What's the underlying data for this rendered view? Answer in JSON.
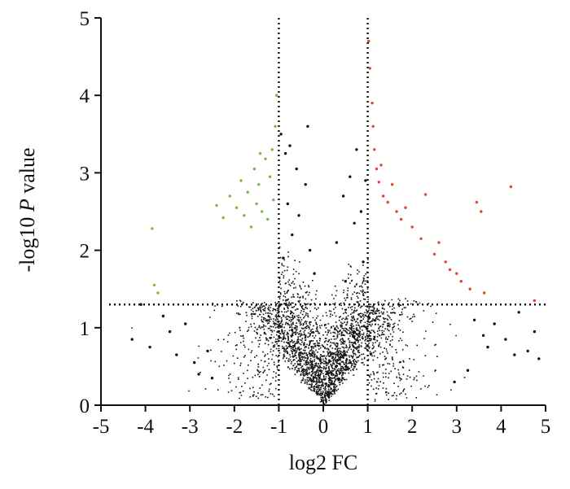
{
  "chart_data": {
    "type": "scatter",
    "title": "",
    "xlabel": "log2 FC",
    "ylabel_parts": [
      "-log10 ",
      "P",
      " value"
    ],
    "xlim": [
      -5,
      5
    ],
    "ylim": [
      0,
      5
    ],
    "xticks": [
      "-5",
      "-4",
      "-3",
      "-2",
      "-1",
      "0",
      "1",
      "2",
      "3",
      "4",
      "5"
    ],
    "yticks": [
      "0",
      "1",
      "2",
      "3",
      "4",
      "5"
    ],
    "thresholds": {
      "x": [
        -1,
        1
      ],
      "y": 1.3
    },
    "grid": false,
    "legend": "none",
    "series": [
      {
        "color": "#7ab648",
        "class": "down-regulated",
        "points": [
          [
            -3.85,
            2.28
          ],
          [
            -3.8,
            1.55
          ],
          [
            -3.72,
            1.45
          ],
          [
            -2.4,
            2.58
          ],
          [
            -2.25,
            2.42
          ],
          [
            -2.1,
            2.7
          ],
          [
            -1.95,
            2.55
          ],
          [
            -1.85,
            2.9
          ],
          [
            -1.78,
            2.45
          ],
          [
            -1.7,
            2.75
          ],
          [
            -1.62,
            2.3
          ],
          [
            -1.55,
            3.05
          ],
          [
            -1.5,
            2.6
          ],
          [
            -1.45,
            2.85
          ],
          [
            -1.42,
            3.25
          ],
          [
            -1.38,
            2.5
          ],
          [
            -1.3,
            3.18
          ],
          [
            -1.25,
            2.4
          ],
          [
            -1.2,
            2.95
          ],
          [
            -1.15,
            3.3
          ],
          [
            -1.12,
            2.65
          ],
          [
            -1.08,
            3.6
          ],
          [
            -1.05,
            4.0
          ]
        ]
      },
      {
        "color": "#e8412c",
        "class": "up-regulated",
        "points": [
          [
            1.02,
            4.7
          ],
          [
            1.05,
            4.35
          ],
          [
            1.1,
            3.9
          ],
          [
            1.12,
            3.6
          ],
          [
            1.15,
            3.3
          ],
          [
            1.2,
            3.05
          ],
          [
            1.25,
            2.88
          ],
          [
            1.3,
            3.1
          ],
          [
            1.35,
            2.7
          ],
          [
            1.45,
            2.62
          ],
          [
            1.55,
            2.85
          ],
          [
            1.65,
            2.5
          ],
          [
            1.75,
            2.4
          ],
          [
            1.85,
            2.55
          ],
          [
            2.0,
            2.3
          ],
          [
            2.2,
            2.15
          ],
          [
            2.3,
            2.72
          ],
          [
            2.5,
            1.95
          ],
          [
            2.6,
            2.1
          ],
          [
            2.75,
            1.85
          ],
          [
            2.85,
            1.75
          ],
          [
            3.0,
            1.7
          ],
          [
            3.1,
            1.6
          ],
          [
            3.3,
            1.5
          ],
          [
            3.45,
            2.62
          ],
          [
            3.55,
            2.5
          ],
          [
            3.62,
            1.45
          ],
          [
            4.22,
            2.82
          ],
          [
            4.75,
            1.35
          ]
        ]
      },
      {
        "color": "#111111",
        "class": "not-significant",
        "points": [
          [
            -0.95,
            3.5
          ],
          [
            -0.85,
            3.25
          ],
          [
            -0.75,
            3.35
          ],
          [
            -0.6,
            3.05
          ],
          [
            -0.4,
            2.85
          ],
          [
            -0.8,
            2.6
          ],
          [
            -0.55,
            2.45
          ],
          [
            -0.35,
            3.6
          ],
          [
            -0.7,
            2.2
          ],
          [
            -0.3,
            2.0
          ],
          [
            -0.9,
            1.9
          ],
          [
            -0.2,
            1.7
          ],
          [
            0.3,
            2.1
          ],
          [
            0.45,
            2.7
          ],
          [
            0.6,
            2.95
          ],
          [
            0.75,
            3.3
          ],
          [
            0.85,
            2.5
          ],
          [
            0.95,
            2.9
          ],
          [
            0.7,
            2.35
          ],
          [
            0.9,
            1.85
          ],
          [
            0.5,
            1.6
          ],
          [
            -4.3,
            0.85
          ],
          [
            -4.1,
            1.3
          ],
          [
            -3.9,
            0.75
          ],
          [
            -3.6,
            1.15
          ],
          [
            -3.45,
            0.95
          ],
          [
            -3.3,
            0.65
          ],
          [
            -3.1,
            1.05
          ],
          [
            -2.9,
            0.55
          ],
          [
            -2.6,
            0.7
          ],
          [
            -2.8,
            0.4
          ],
          [
            -2.5,
            0.35
          ],
          [
            3.4,
            1.1
          ],
          [
            3.6,
            0.9
          ],
          [
            3.7,
            0.75
          ],
          [
            3.85,
            1.05
          ],
          [
            4.1,
            0.85
          ],
          [
            4.3,
            0.65
          ],
          [
            4.6,
            0.7
          ],
          [
            4.75,
            0.95
          ],
          [
            4.4,
            1.2
          ],
          [
            4.85,
            0.6
          ],
          [
            3.25,
            0.45
          ],
          [
            2.95,
            0.3
          ]
        ]
      }
    ]
  }
}
